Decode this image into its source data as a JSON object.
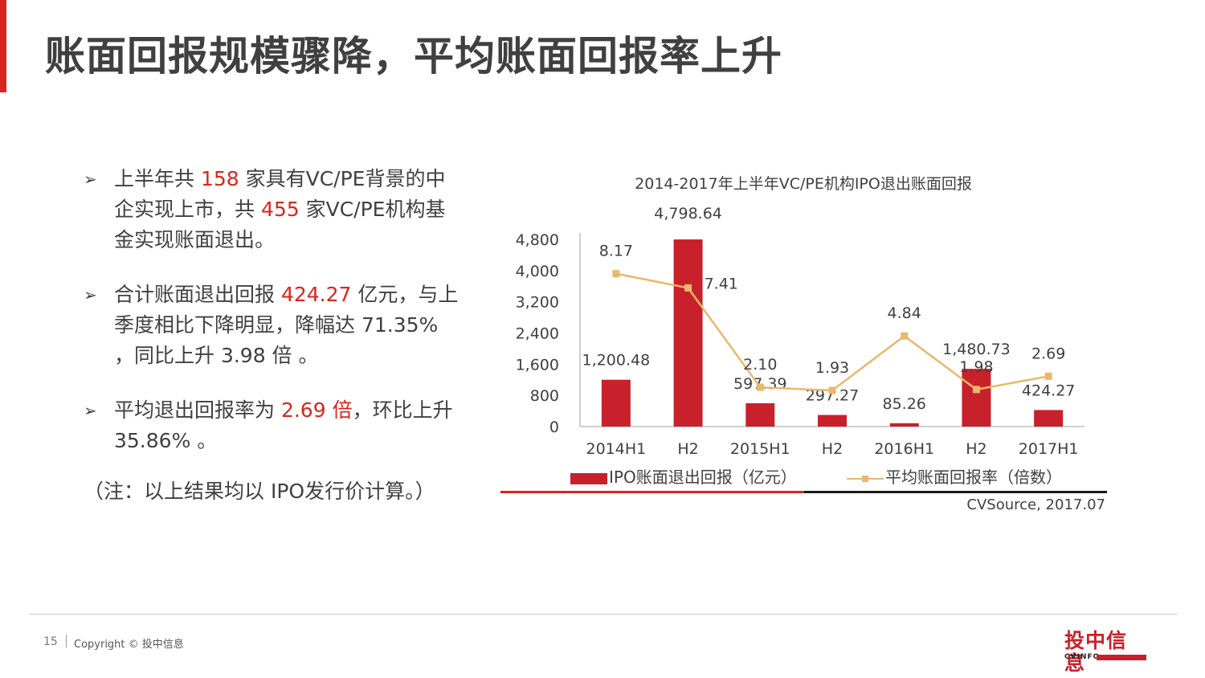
{
  "title": "账面回报规模骤降，平均账面回报率上升",
  "bullets": [
    {
      "parts": [
        {
          "t": "上半年共 "
        },
        {
          "t": "158",
          "hl": true
        },
        {
          "t": " 家具有VC/PE背景的中企实现上市，共 "
        },
        {
          "t": "455",
          "hl": true
        },
        {
          "t": " 家VC/PE机构基金实现账面退出。"
        }
      ]
    },
    {
      "parts": [
        {
          "t": "合计账面退出回报 "
        },
        {
          "t": "424.27",
          "hl": true
        },
        {
          "t": " 亿元，与上季度相比下降明显，降幅达 71.35% ，同比上升 3.98 倍 。"
        }
      ]
    },
    {
      "parts": [
        {
          "t": "平均退出回报率为 "
        },
        {
          "t": "2.69 倍",
          "hl": true
        },
        {
          "t": "，环比上升 35.86% 。"
        }
      ]
    }
  ],
  "note": "（注：以上结果均以 IPO发行价计算。）",
  "chart_data": {
    "type": "bar",
    "title": "2014-2017年上半年VC/PE机构IPO退出账面回报",
    "categories": [
      "2014H1",
      "H2",
      "2015H1",
      "H2",
      "2016H1",
      "H2",
      "2017H1"
    ],
    "series": [
      {
        "name": "IPO账面退出回报（亿元）",
        "type": "bar",
        "values": [
          1200.48,
          4798.64,
          597.39,
          297.27,
          85.26,
          1480.73,
          424.27
        ],
        "labels": [
          "1,200.48",
          "4,798.64",
          "597.39",
          "297.27",
          "85.26",
          "1,480.73",
          "424.27"
        ]
      },
      {
        "name": "平均账面回报率（倍数）",
        "type": "line",
        "values": [
          8.17,
          7.41,
          2.1,
          1.93,
          4.84,
          1.98,
          2.69
        ],
        "labels": [
          "8.17",
          "7.41",
          "2.10",
          "1.93",
          "4.84",
          "1.98",
          "2.69"
        ]
      }
    ],
    "ylim": [
      0,
      4800
    ],
    "yticks": [
      0,
      800,
      1600,
      2400,
      3200,
      4000,
      4800
    ],
    "ytick_labels": [
      "0",
      "800",
      "1,600",
      "2,400",
      "3,200",
      "4,000",
      "4,800"
    ],
    "y2lim": [
      0,
      10
    ],
    "legend": "bottom",
    "colors": {
      "bar": "#c9212b",
      "line": "#e8b86b"
    }
  },
  "source": "CVSource, 2017.07",
  "footer": {
    "page": "15",
    "copyright": "Copyright © 投中信息"
  },
  "logo": {
    "cn": "投中信息",
    "en": "CVINFO"
  }
}
